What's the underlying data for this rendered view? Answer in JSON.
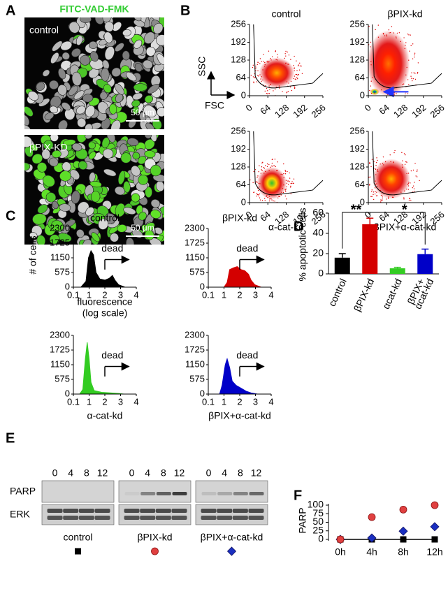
{
  "panel_labels": [
    "A",
    "B",
    "C",
    "D",
    "E",
    "F"
  ],
  "panel_a": {
    "title": "FITC-VAD-FMK",
    "images": [
      {
        "label": "control",
        "scale_bar": "50 µm"
      },
      {
        "label": "βPIX-KD",
        "scale_bar": "50 µm"
      }
    ]
  },
  "panel_b": {
    "y_axis_label": "SSC",
    "x_axis_label": "FSC",
    "ticks": [
      0,
      64,
      128,
      192,
      256
    ],
    "plots": [
      {
        "label": "control"
      },
      {
        "label": "βPIX-kd"
      },
      {
        "label": "α-cat-kd"
      },
      {
        "label": "βPIX+α-cat-kd"
      }
    ]
  },
  "panel_c": {
    "y_axis_label": "# of cells",
    "x_axis_label": [
      "fluorescence",
      "(log scale)"
    ],
    "annotation": "dead",
    "yticks": [
      0,
      575,
      1150,
      1725,
      2300
    ],
    "xticks": [
      0.1,
      1,
      2,
      3,
      4
    ],
    "plots": [
      {
        "label": "control",
        "color": "#000000"
      },
      {
        "label": "βPIX-kd",
        "color": "#d40000"
      },
      {
        "label": "α-cat-kd",
        "color": "#33cc22"
      },
      {
        "label": "βPIX+α-cat-kd",
        "color": "#0000c8"
      }
    ]
  },
  "panel_e": {
    "lanes": [
      0,
      4,
      8,
      12
    ],
    "rows": [
      "PARP",
      "ERK"
    ],
    "groups": [
      "control",
      "βPIX-kd",
      "βPIX+α-cat-kd"
    ]
  },
  "chart_data": [
    {
      "type": "bar",
      "y_label": "% apoptotic cells",
      "categories": [
        "control",
        "βPIX-kd",
        "αcat-kd",
        [
          "βPIX+",
          "αcat-kd"
        ]
      ],
      "values": [
        16,
        49,
        5.5,
        19.5
      ],
      "errors": [
        4,
        6,
        1,
        5
      ],
      "colors": [
        "#000000",
        "#d40000",
        "#33cc22",
        "#0000c8"
      ],
      "ylim": [
        0,
        60
      ],
      "yticks": [
        0,
        20,
        40,
        60
      ],
      "significance": [
        "**",
        "*"
      ]
    },
    {
      "type": "scatter",
      "y_label": "PARP",
      "categories": [
        "0h",
        "4h",
        "8h",
        "12h"
      ],
      "ylim": [
        0,
        100
      ],
      "yticks": [
        0,
        25,
        50,
        75,
        100
      ],
      "series": [
        {
          "color": "#000000",
          "marker": "square",
          "values": [
            0,
            0,
            0,
            0
          ]
        },
        {
          "color": "#e04040",
          "marker": "circle",
          "values": [
            0,
            65,
            87,
            100
          ]
        },
        {
          "color": "#1a2fc0",
          "marker": "diamond",
          "values": [
            0,
            4,
            24,
            37
          ]
        }
      ]
    }
  ]
}
